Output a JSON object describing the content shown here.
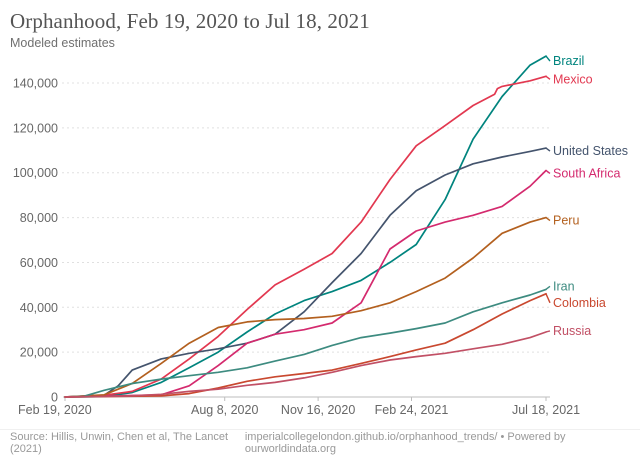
{
  "chart_data": {
    "type": "line",
    "title": "Orphanhood, Feb 19, 2020 to Jul 18, 2021",
    "subtitle": "Modeled estimates",
    "xlabel": "",
    "ylabel": "",
    "x_unit": "days since Feb 19, 2020",
    "x_range_days": [
      0,
      515
    ],
    "ylim": [
      0,
      152500
    ],
    "grid": "dashed-horizontal",
    "legend_position": "right-edge-line-labels",
    "x_ticks": [
      {
        "day": 0,
        "label": "Feb 19, 2020"
      },
      {
        "day": 171,
        "label": "Aug 8, 2020"
      },
      {
        "day": 271,
        "label": "Nov 16, 2020"
      },
      {
        "day": 371,
        "label": "Feb 24, 2021"
      },
      {
        "day": 515,
        "label": "Jul 18, 2021"
      }
    ],
    "y_ticks": [
      {
        "value": 0,
        "label": "0"
      },
      {
        "value": 20000,
        "label": "20,000"
      },
      {
        "value": 40000,
        "label": "40,000"
      },
      {
        "value": 60000,
        "label": "60,000"
      },
      {
        "value": 80000,
        "label": "80,000"
      },
      {
        "value": 100000,
        "label": "100,000"
      },
      {
        "value": 120000,
        "label": "120,000"
      },
      {
        "value": 140000,
        "label": "140,000"
      }
    ],
    "series": [
      {
        "name": "Brazil",
        "color": "#00847E",
        "points": [
          [
            0,
            0
          ],
          [
            42,
            200
          ],
          [
            72,
            2000
          ],
          [
            103,
            6500
          ],
          [
            133,
            13000
          ],
          [
            164,
            20000
          ],
          [
            195,
            29000
          ],
          [
            225,
            37000
          ],
          [
            256,
            43000
          ],
          [
            286,
            47000
          ],
          [
            317,
            52000
          ],
          [
            348,
            60000
          ],
          [
            376,
            68000
          ],
          [
            407,
            88000
          ],
          [
            437,
            115000
          ],
          [
            468,
            134000
          ],
          [
            498,
            148000
          ],
          [
            515,
            152000
          ]
        ]
      },
      {
        "name": "Mexico",
        "color": "#E23850",
        "points": [
          [
            0,
            0
          ],
          [
            42,
            800
          ],
          [
            72,
            2500
          ],
          [
            103,
            8000
          ],
          [
            133,
            17000
          ],
          [
            164,
            27000
          ],
          [
            195,
            39000
          ],
          [
            225,
            50000
          ],
          [
            256,
            57000
          ],
          [
            286,
            64000
          ],
          [
            317,
            78000
          ],
          [
            348,
            97000
          ],
          [
            376,
            112000
          ],
          [
            407,
            121000
          ],
          [
            437,
            130000
          ],
          [
            460,
            135000
          ],
          [
            463,
            137500
          ],
          [
            468,
            138500
          ],
          [
            498,
            141000
          ],
          [
            515,
            143000
          ]
        ]
      },
      {
        "name": "United States",
        "color": "#44546D",
        "points": [
          [
            0,
            0
          ],
          [
            42,
            800
          ],
          [
            57,
            5000
          ],
          [
            72,
            12000
          ],
          [
            103,
            17000
          ],
          [
            133,
            19500
          ],
          [
            164,
            21500
          ],
          [
            195,
            24000
          ],
          [
            225,
            28000
          ],
          [
            256,
            38000
          ],
          [
            286,
            51000
          ],
          [
            317,
            64000
          ],
          [
            348,
            81000
          ],
          [
            376,
            92000
          ],
          [
            407,
            99000
          ],
          [
            437,
            104000
          ],
          [
            468,
            107000
          ],
          [
            498,
            109500
          ],
          [
            515,
            111000
          ]
        ]
      },
      {
        "name": "South Africa",
        "color": "#D42A6E",
        "points": [
          [
            0,
            0
          ],
          [
            103,
            1000
          ],
          [
            133,
            5000
          ],
          [
            164,
            14000
          ],
          [
            195,
            24000
          ],
          [
            225,
            28000
          ],
          [
            256,
            30000
          ],
          [
            286,
            33000
          ],
          [
            317,
            42000
          ],
          [
            348,
            66000
          ],
          [
            376,
            74000
          ],
          [
            407,
            78000
          ],
          [
            437,
            81000
          ],
          [
            468,
            85000
          ],
          [
            498,
            94000
          ],
          [
            515,
            101000
          ]
        ]
      },
      {
        "name": "Peru",
        "color": "#B3601F",
        "points": [
          [
            0,
            0
          ],
          [
            42,
            1000
          ],
          [
            72,
            6000
          ],
          [
            103,
            15000
          ],
          [
            133,
            24000
          ],
          [
            164,
            31000
          ],
          [
            195,
            33500
          ],
          [
            225,
            34500
          ],
          [
            256,
            35000
          ],
          [
            286,
            36000
          ],
          [
            317,
            38500
          ],
          [
            348,
            42000
          ],
          [
            376,
            47000
          ],
          [
            407,
            53000
          ],
          [
            437,
            62000
          ],
          [
            468,
            73000
          ],
          [
            498,
            78000
          ],
          [
            515,
            80000
          ]
        ]
      },
      {
        "name": "Iran",
        "color": "#3D8B80",
        "points": [
          [
            0,
            0
          ],
          [
            20,
            300
          ],
          [
            42,
            3000
          ],
          [
            72,
            6000
          ],
          [
            103,
            8000
          ],
          [
            133,
            9500
          ],
          [
            164,
            11000
          ],
          [
            195,
            13000
          ],
          [
            225,
            16000
          ],
          [
            256,
            19000
          ],
          [
            286,
            23000
          ],
          [
            317,
            26500
          ],
          [
            348,
            28500
          ],
          [
            376,
            30500
          ],
          [
            407,
            33000
          ],
          [
            437,
            38000
          ],
          [
            468,
            42000
          ],
          [
            498,
            45500
          ],
          [
            515,
            48000
          ]
        ]
      },
      {
        "name": "Colombia",
        "color": "#C9482F",
        "points": [
          [
            0,
            0
          ],
          [
            103,
            500
          ],
          [
            133,
            1500
          ],
          [
            164,
            4000
          ],
          [
            195,
            7000
          ],
          [
            225,
            9000
          ],
          [
            256,
            10500
          ],
          [
            286,
            12000
          ],
          [
            317,
            15000
          ],
          [
            348,
            18000
          ],
          [
            376,
            21000
          ],
          [
            407,
            24000
          ],
          [
            437,
            30000
          ],
          [
            468,
            37000
          ],
          [
            498,
            43000
          ],
          [
            515,
            46000
          ]
        ]
      },
      {
        "name": "Russia",
        "color": "#C15065",
        "points": [
          [
            0,
            0
          ],
          [
            72,
            500
          ],
          [
            103,
            1200
          ],
          [
            133,
            2500
          ],
          [
            164,
            3500
          ],
          [
            195,
            5200
          ],
          [
            225,
            6500
          ],
          [
            256,
            8500
          ],
          [
            286,
            11000
          ],
          [
            317,
            14000
          ],
          [
            348,
            16500
          ],
          [
            376,
            18000
          ],
          [
            407,
            19500
          ],
          [
            437,
            21500
          ],
          [
            468,
            23500
          ],
          [
            498,
            26500
          ],
          [
            515,
            29000
          ]
        ]
      }
    ]
  },
  "footer": {
    "source": "Source: Hillis, Unwin, Chen et al, The Lancet (2021)",
    "link": "imperialcollegelondon.github.io/orphanhood_trends/",
    "separator": "•",
    "powered_by": "Powered by ourworldindata.org"
  }
}
